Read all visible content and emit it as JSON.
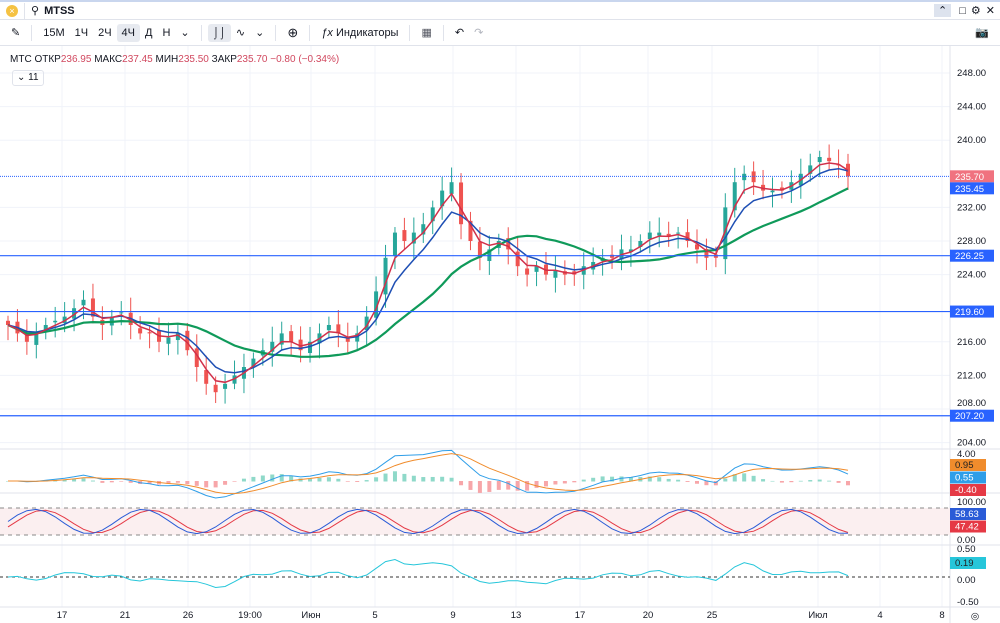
{
  "header": {
    "symbol": "MTSS"
  },
  "toolbar": {
    "intervals": [
      "15M",
      "1Ч",
      "2Ч",
      "4Ч",
      "Д",
      "Н"
    ],
    "active_interval": "4Ч",
    "indicators_label": "Индикаторы"
  },
  "legend": {
    "name": "МТС",
    "open_label": "ОТКР",
    "open": "236.95",
    "high_label": "МАКС",
    "high": "237.45",
    "low_label": "МИН",
    "low": "235.50",
    "close_label": "ЗАКР",
    "close": "235.70",
    "change": "−0.80 (−0.34%)",
    "collapsed_count": "11"
  },
  "colors": {
    "up": "#26a69a",
    "down": "#ef5350",
    "ema_fast": "#d1304a",
    "ema_slow": "#1e4fb4",
    "sma": "#0f9a5a",
    "hline": "#2962ff",
    "accent": "#2962ff"
  },
  "chart_data": {
    "type": "candlestick",
    "price_axis_ticks": [
      "248.00",
      "244.00",
      "240.00",
      "232.00",
      "228.00",
      "224.00",
      "216.00",
      "212.00",
      "208.00",
      "204.00"
    ],
    "ylim": [
      203,
      250
    ],
    "closes": [
      218,
      217,
      216,
      217,
      218,
      218.5,
      219,
      220,
      221,
      219,
      218,
      219,
      219.5,
      218,
      217,
      217,
      216,
      216.5,
      217,
      215,
      213,
      211,
      210,
      211,
      212,
      213,
      214,
      215,
      216,
      217,
      216,
      215,
      216,
      217,
      218,
      217,
      216,
      217,
      219,
      222,
      226,
      229,
      228,
      229,
      230,
      232,
      234,
      235,
      230,
      228,
      226,
      227,
      228,
      227,
      225,
      224,
      225,
      224,
      224.5,
      224,
      224,
      225,
      225.5,
      226,
      226,
      227,
      227,
      228,
      229,
      229,
      228.5,
      229,
      228,
      227,
      226,
      226,
      232,
      235,
      236,
      235,
      234,
      234,
      234,
      235,
      236,
      237,
      238,
      237.5,
      237,
      235.7
    ],
    "horizontal_levels": [
      {
        "value": 226.25,
        "label": "226.25"
      },
      {
        "value": 219.6,
        "label": "219.60"
      },
      {
        "value": 207.2,
        "label": "207.20"
      }
    ],
    "last_price": {
      "value": 235.7,
      "label": "235.70"
    },
    "ema_tag": {
      "value": 235.45,
      "label": "235.45"
    },
    "x_labels": [
      "17",
      "21",
      "26",
      "19:00",
      "Июн",
      "5",
      "9",
      "13",
      "17",
      "20",
      "25",
      "Июл",
      "4",
      "8"
    ],
    "macd": {
      "axis": [
        "4.00"
      ],
      "tags": [
        {
          "label": "0.95",
          "color": "#f08c2c"
        },
        {
          "label": "0.55",
          "color": "#2f9ee8"
        },
        {
          "label": "-0.40",
          "color": "#e53945"
        }
      ]
    },
    "stoch": {
      "axis": [
        "100.00",
        "0.00"
      ],
      "tags": [
        {
          "label": "58.63",
          "color": "#2a5bd7"
        },
        {
          "label": "47.42",
          "color": "#e53945"
        }
      ]
    },
    "osc": {
      "axis": [
        "0.50",
        "0.00",
        "-0.50"
      ],
      "tags": [
        {
          "label": "0.19",
          "color": "#26c6da"
        }
      ]
    }
  }
}
